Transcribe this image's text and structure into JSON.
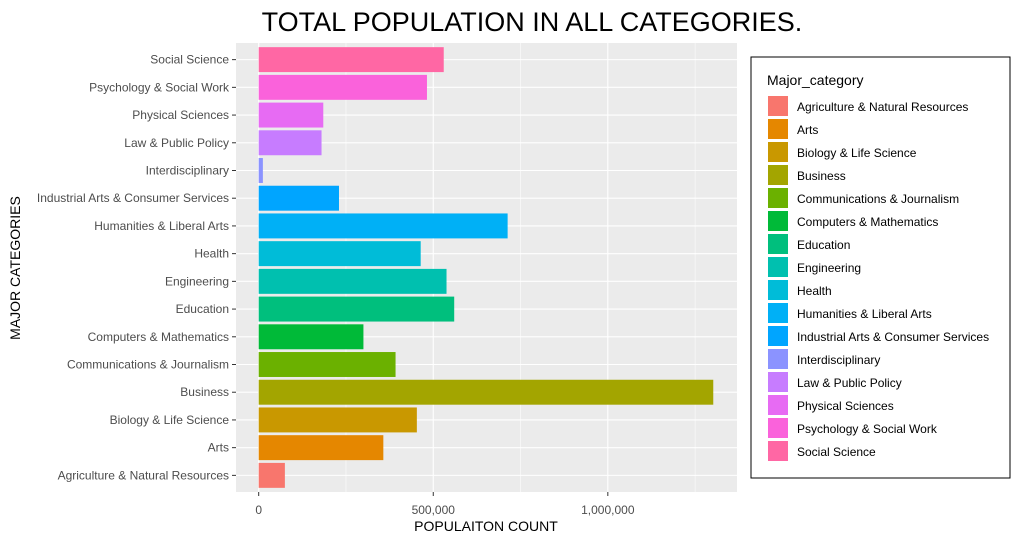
{
  "chart_data": {
    "type": "bar",
    "orientation": "horizontal",
    "title": "TOTAL POPULATION IN ALL CATEGORIES.",
    "xlabel": "POPULAITON COUNT",
    "ylabel": "MAJOR CATEGORIES",
    "xlim": [
      -65000,
      1370000
    ],
    "xticks": [
      0,
      500000,
      1000000
    ],
    "xtick_labels": [
      "0",
      "500,000",
      "1,000,000"
    ],
    "grid": true,
    "legend": {
      "title": "Major_category",
      "placement": "right"
    },
    "categories": [
      "Agriculture & Natural Resources",
      "Arts",
      "Biology & Life Science",
      "Business",
      "Communications & Journalism",
      "Computers & Mathematics",
      "Education",
      "Engineering",
      "Health",
      "Humanities & Liberal Arts",
      "Industrial Arts & Consumer Services",
      "Interdisciplinary",
      "Law & Public Policy",
      "Physical Sciences",
      "Psychology & Social Work",
      "Social Science"
    ],
    "values": [
      75000,
      357000,
      453000,
      1302000,
      392000,
      300000,
      560000,
      538000,
      464000,
      713000,
      230000,
      12000,
      180000,
      185000,
      482000,
      530000
    ],
    "colors": [
      "#F8766D",
      "#E58700",
      "#C99800",
      "#A3A500",
      "#6BB100",
      "#00BA38",
      "#00BF7D",
      "#00C0AF",
      "#00BCD8",
      "#00B0F6",
      "#00A5FF",
      "#8B93FF",
      "#C77CFF",
      "#E76BF3",
      "#FA62DB",
      "#FF67A4"
    ]
  }
}
